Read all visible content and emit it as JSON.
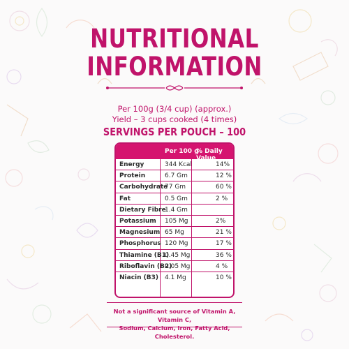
{
  "heading": {
    "line1": "NUTRITIONAL",
    "line2": "INFORMATION"
  },
  "serving_info": {
    "per": "Per 100g (3/4 cup) (approx.)",
    "yield": "Yield – 3 cups cooked (4 times)",
    "servings": "SERVINGS PER POUCH – 100"
  },
  "table": {
    "col_per": "Per 100 g",
    "col_dv": "% Daily Value",
    "rows": [
      {
        "name": "Energy",
        "value": "344 Kcal",
        "dv": "14%"
      },
      {
        "name": "Protein",
        "value": "6.7 Gm",
        "dv": "12 %"
      },
      {
        "name": "Carbohydrate",
        "value": "77 Gm",
        "dv": "60 %"
      },
      {
        "name": "Fat",
        "value": "0.5 Gm",
        "dv": "2 %"
      },
      {
        "name": "Dietary Fibre",
        "value": "1.4 Gm",
        "dv": ""
      },
      {
        "name": "Potassium",
        "value": "105 Mg",
        "dv": "2%"
      },
      {
        "name": "Magnesium",
        "value": "65 Mg",
        "dv": "21 %"
      },
      {
        "name": "Phosphorus",
        "value": "120 Mg",
        "dv": "17 %"
      },
      {
        "name": "Thiamine (B1)",
        "value": "0.45 Mg",
        "dv": "36 %"
      },
      {
        "name": "Riboflavin (B2)",
        "value": "0.05 Mg",
        "dv": "4 %"
      },
      {
        "name": "Niacin (B3)",
        "value": "4.1 Mg",
        "dv": "10 %"
      }
    ]
  },
  "footnote": {
    "line1": "Not a significant source of Vitamin A, Vitamin C,",
    "line2": "Sodium, Calcium, Iron, Fatty Acid, Cholesterol."
  },
  "colors": {
    "accent": "#c0136a",
    "header_fill": "#d5146f"
  },
  "decorations": [
    "spice-doodle-pattern",
    "ornamental-divider"
  ]
}
